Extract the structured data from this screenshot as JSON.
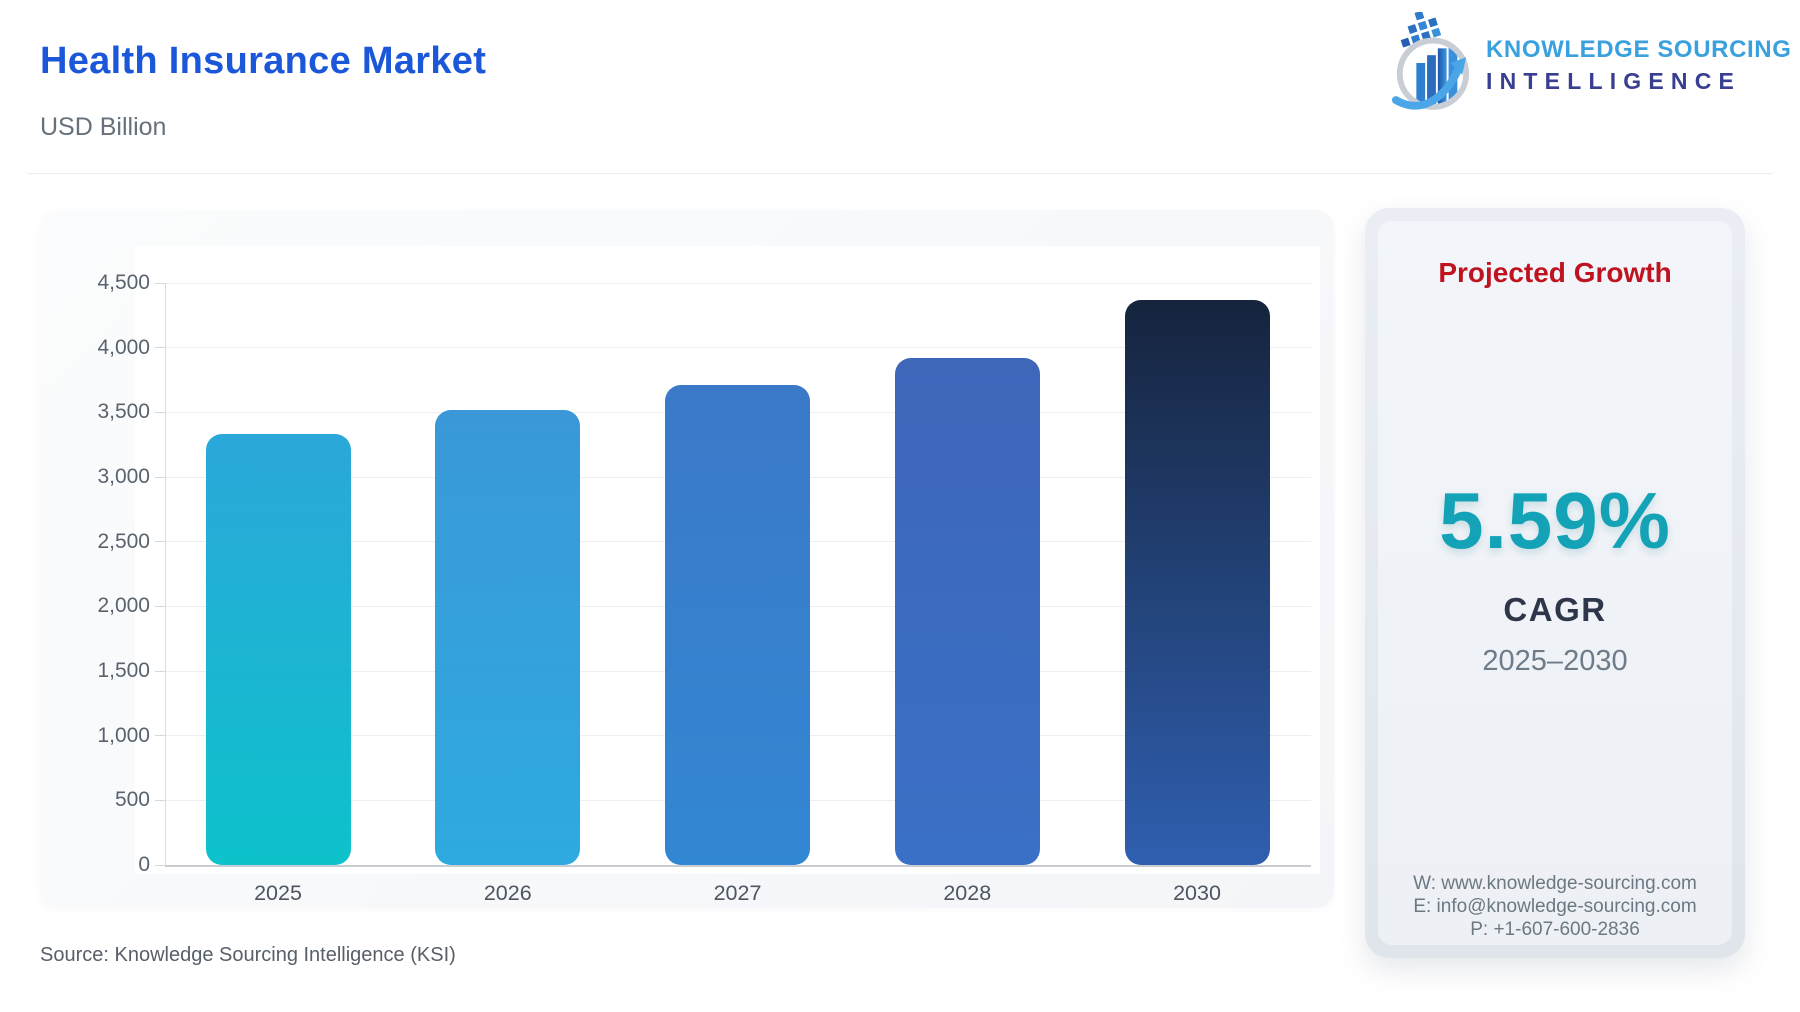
{
  "header": {
    "title": "Health Insurance Market",
    "subtitle": "USD Billion"
  },
  "logo": {
    "line1": "KNOWLEDGE SOURCING",
    "line2": "INTELLIGENCE"
  },
  "chart_data": {
    "type": "bar",
    "title": "Health Insurance Market",
    "units": "USD Billion",
    "categories": [
      "2025",
      "2026",
      "2027",
      "2028",
      "2030"
    ],
    "values": [
      3330,
      3516,
      3712,
      3920,
      4371
    ],
    "ylim": [
      0,
      4500
    ],
    "ytick_step": 500,
    "grid": true,
    "legend": false,
    "bar_gradients": [
      [
        "#2ba7d9",
        "#0dc2cb"
      ],
      [
        "#3a98d8",
        "#2eaae0"
      ],
      [
        "#3b79c9",
        "#3287d3"
      ],
      [
        "#3e66b9",
        "#3a70c6"
      ],
      [
        "#16243d",
        "#2f5fb0"
      ]
    ]
  },
  "side_panel": {
    "title": "Projected Growth",
    "cagr_value": "5.59%",
    "cagr_label": "CAGR",
    "period": "2025–2030",
    "contact": {
      "website": "W: www.knowledge-sourcing.com",
      "email": "E: info@knowledge-sourcing.com",
      "phone": "P: +1-607-600-2836"
    }
  },
  "footer": {
    "source": "Source: Knowledge Sourcing Intelligence (KSI)"
  },
  "colors": {
    "title-blue": "#1b57d9",
    "subtitle-gray": "#66717c",
    "accent-red": "#bf1420",
    "accent-teal": "#14a3b6",
    "logo-lightblue": "#3aa1de",
    "logo-indigo": "#383e90"
  }
}
